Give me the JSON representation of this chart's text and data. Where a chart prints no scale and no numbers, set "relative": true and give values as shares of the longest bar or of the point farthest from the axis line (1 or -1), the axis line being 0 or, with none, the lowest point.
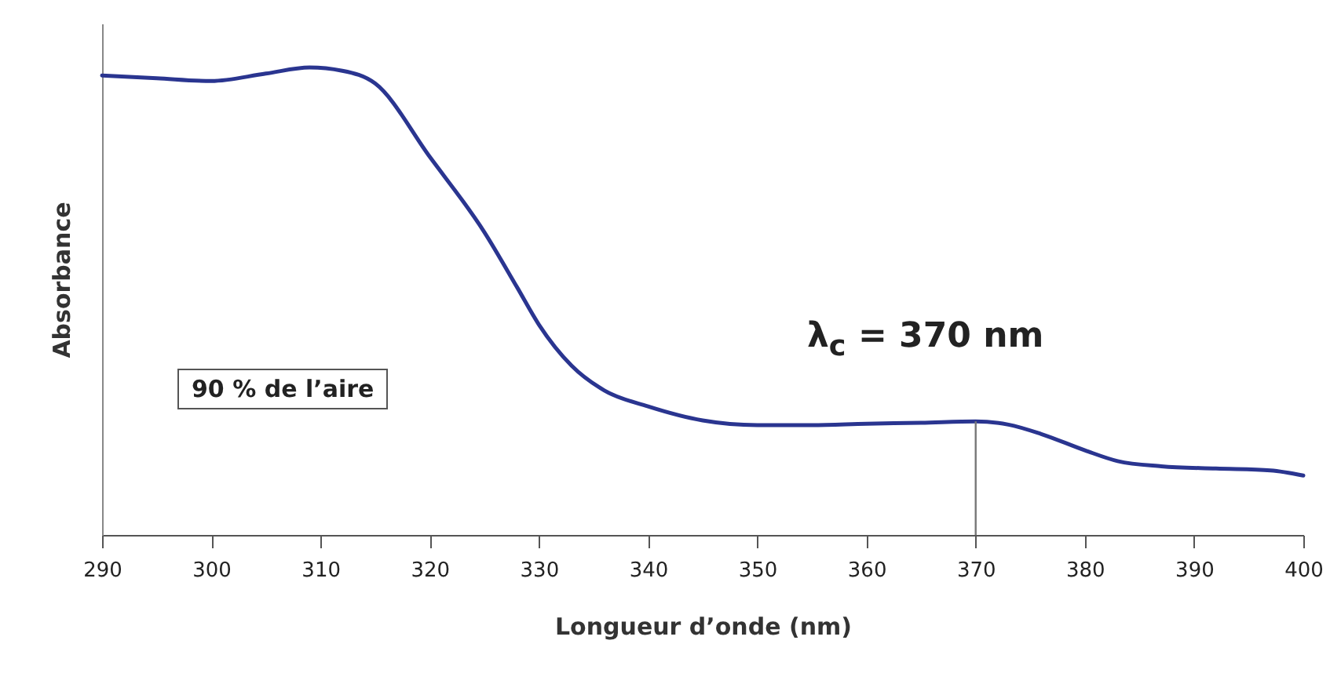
{
  "chart_data": {
    "type": "line",
    "xlabel": "Longueur d’onde (nm)",
    "ylabel": "Absorbance",
    "relative": true,
    "xlim": [
      290,
      400
    ],
    "xticks": [
      290,
      300,
      310,
      320,
      330,
      340,
      350,
      360,
      370,
      380,
      390,
      400
    ],
    "grid": false,
    "marker": "none",
    "line_style": "solid",
    "ref_lines": [
      {
        "axis": "x",
        "value": 370,
        "label": "λ$_{c}$ = 370 nm"
      }
    ],
    "annotations": [
      "90 % de l’aire"
    ],
    "series": [
      {
        "color": "#2a3590",
        "x": [
          290,
          295,
          300,
          305,
          309,
          312,
          315,
          320,
          325,
          328,
          330,
          333,
          336,
          340,
          345,
          350,
          355,
          360,
          365,
          370,
          373,
          376,
          380,
          383,
          387,
          392,
          397,
          400
        ],
        "values": [
          0.983,
          0.977,
          0.971,
          0.987,
          1,
          0.993,
          0.966,
          0.809,
          0.648,
          0.53,
          0.45,
          0.362,
          0.309,
          0.275,
          0.245,
          0.235,
          0.235,
          0.238,
          0.24,
          0.243,
          0.236,
          0.216,
          0.181,
          0.158,
          0.147,
          0.142,
          0.138,
          0.127
        ]
      }
    ]
  }
}
